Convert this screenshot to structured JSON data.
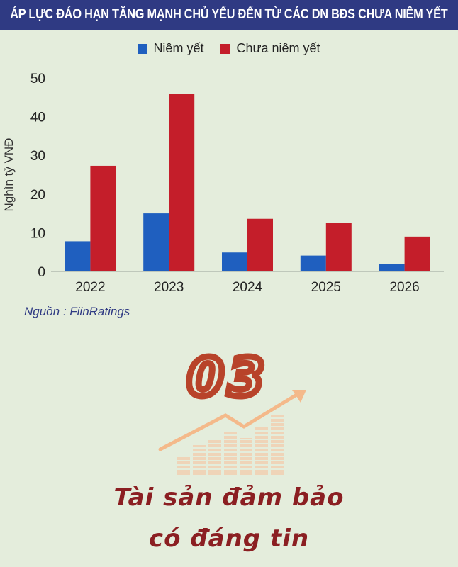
{
  "header": {
    "title": "ÁP LỰC ĐÁO HẠN TĂNG MẠNH CHỦ YẾU ĐẾN TỪ CÁC DN BĐS CHƯA NIÊM YẾT"
  },
  "colors": {
    "listed": "#1f5fbf",
    "unlisted": "#c41e2a",
    "title_bg": "#2f3a83",
    "accent": "#8b1f22"
  },
  "chart_data": {
    "type": "bar",
    "title": "ÁP LỰC ĐÁO HẠN TĂNG MẠNH CHỦ YẾU ĐẾN TỪ CÁC DN BĐS CHƯA NIÊM YẾT",
    "categories": [
      "2022",
      "2023",
      "2024",
      "2025",
      "2026"
    ],
    "series": [
      {
        "name": "Niêm yết",
        "values": [
          7.8,
          15.0,
          4.9,
          4.1,
          2.0
        ]
      },
      {
        "name": "Chưa niêm yết",
        "values": [
          27.3,
          45.8,
          13.6,
          12.5,
          9.0
        ]
      }
    ],
    "ylabel": "Nghìn tỷ VNĐ",
    "ylim": [
      0,
      50
    ],
    "yticks": [
      0,
      10,
      20,
      30,
      40,
      50
    ],
    "grid": false,
    "legend": "top-center"
  },
  "source": "Nguồn : FiinRatings",
  "logo": {
    "number": "03"
  },
  "tagline": {
    "line1": "Tài sản đảm bảo",
    "line2": "có đáng tin"
  }
}
